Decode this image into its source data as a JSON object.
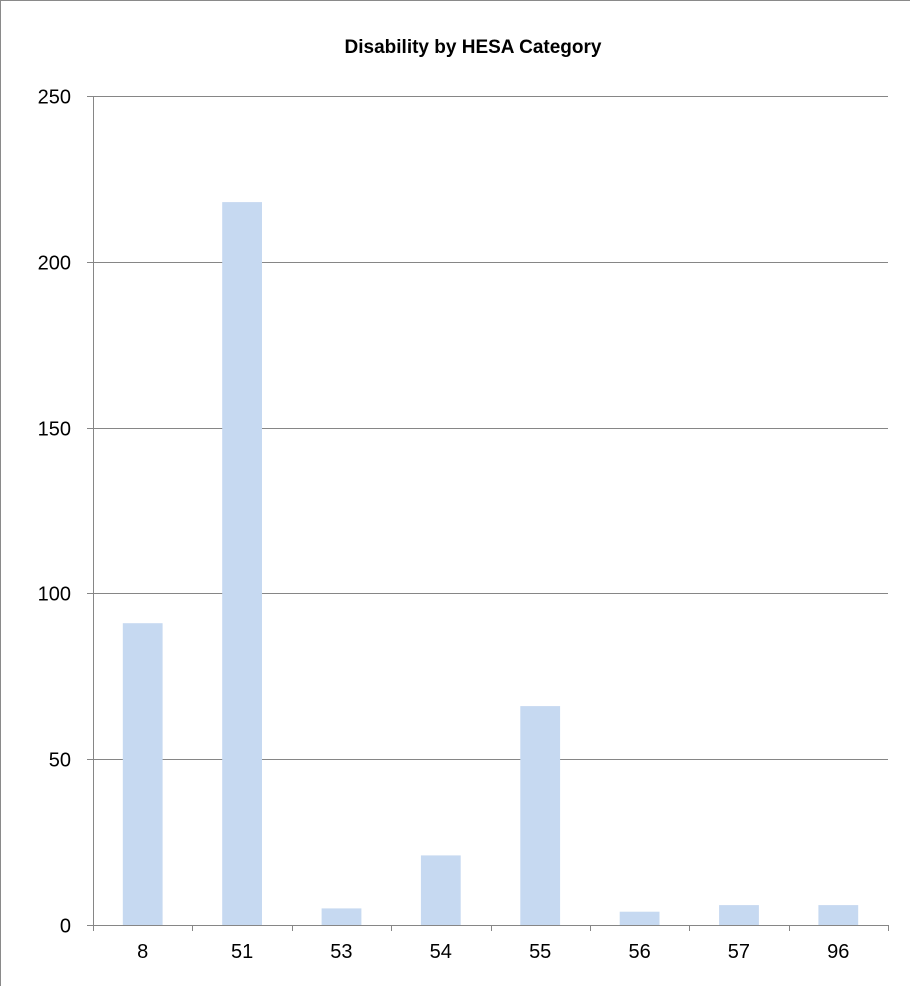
{
  "chart_data": {
    "type": "bar",
    "title": "Disability by HESA Category",
    "xlabel": "",
    "ylabel": "",
    "categories": [
      "8",
      "51",
      "53",
      "54",
      "55",
      "56",
      "57",
      "96"
    ],
    "values": [
      91,
      218,
      5,
      21,
      66,
      4,
      6,
      6
    ],
    "ylim": [
      0,
      250
    ],
    "yticks": [
      0,
      50,
      100,
      150,
      200,
      250
    ],
    "grid": true,
    "legend": "none",
    "bar_color": "#c6d9f1",
    "grid_color": "#868686"
  }
}
